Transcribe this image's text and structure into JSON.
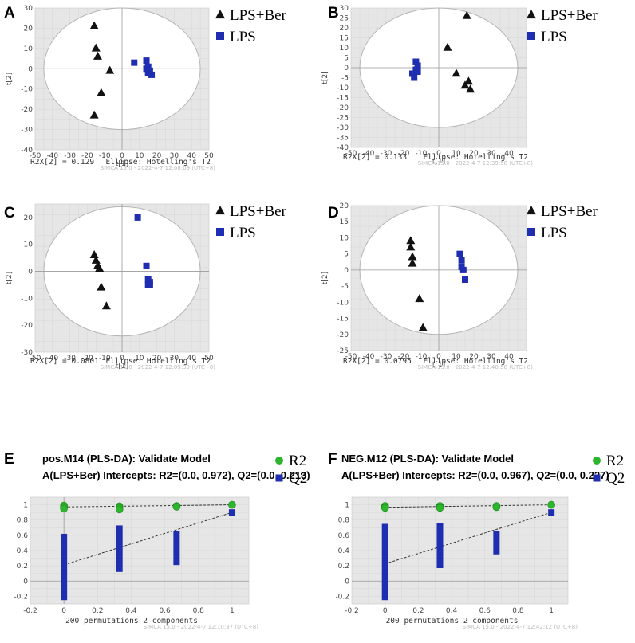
{
  "figure": {
    "colors": {
      "lps_ber": "#111111",
      "lps": "#1f2eb0",
      "r2": "#2db52d",
      "q2": "#1f2eb0",
      "plot_bg": "#e6e6e6",
      "ellipse": "#ffffff"
    },
    "legend": {
      "group1": "LPS+Ber",
      "group2": "LPS",
      "r2": "R2",
      "q2": "Q2"
    }
  },
  "chart_data": [
    {
      "panel": "A",
      "type": "scatter",
      "xlabel": "t[1]",
      "ylabel": "t[2]",
      "xlim": [
        -50,
        50
      ],
      "ylim": [
        -40,
        30
      ],
      "xticks": [
        "-50",
        "-40",
        "-30",
        "-20",
        "-10",
        "0",
        "10",
        "20",
        "30",
        "40",
        "50"
      ],
      "yticks": [
        "-40",
        "-30",
        "-20",
        "-10",
        "0",
        "10",
        "20",
        "30"
      ],
      "ellipse": {
        "rx": 45,
        "ry": 30
      },
      "series": [
        {
          "name": "LPS+Ber",
          "marker": "triangle",
          "points": [
            [
              -16,
              21
            ],
            [
              -15,
              10
            ],
            [
              -14,
              6
            ],
            [
              -7,
              -1
            ],
            [
              -12,
              -12
            ],
            [
              -16,
              -23
            ]
          ]
        },
        {
          "name": "LPS",
          "marker": "square",
          "points": [
            [
              7,
              3
            ],
            [
              14,
              4
            ],
            [
              15,
              1
            ],
            [
              16,
              -1
            ],
            [
              15,
              -2
            ],
            [
              17,
              -3
            ],
            [
              14,
              0
            ]
          ]
        }
      ],
      "footer_left": "R2X[2] = 0.129",
      "footer_right": "Ellipse: Hotelling's T2",
      "watermark": "SIMCA 15.0 - 2022-4-7 12:08:09 (UTC+8)"
    },
    {
      "panel": "B",
      "type": "scatter",
      "xlabel": "t[1]",
      "ylabel": "t[2]",
      "xlim": [
        -50,
        50
      ],
      "ylim": [
        -40,
        30
      ],
      "xticks": [
        "-50",
        "-40",
        "-30",
        "-20",
        "-10",
        "0",
        "10",
        "20",
        "30",
        "40"
      ],
      "yticks": [
        "-40",
        "-35",
        "-30",
        "-25",
        "-20",
        "-15",
        "-10",
        "-5",
        "0",
        "5",
        "10",
        "15",
        "20",
        "25",
        "30"
      ],
      "ellipse": {
        "rx": 45,
        "ry": 30
      },
      "series": [
        {
          "name": "LPS+Ber",
          "marker": "triangle",
          "points": [
            [
              16,
              26
            ],
            [
              5,
              10
            ],
            [
              10,
              -3
            ],
            [
              17,
              -7
            ],
            [
              15,
              -9
            ],
            [
              18,
              -11
            ]
          ]
        },
        {
          "name": "LPS",
          "marker": "square",
          "points": [
            [
              -13,
              3
            ],
            [
              -12,
              1
            ],
            [
              -13,
              -1
            ],
            [
              -15,
              -3
            ],
            [
              -14,
              -5
            ],
            [
              -12,
              -2
            ]
          ]
        }
      ],
      "footer_left": "R2X[2] = 0.133",
      "footer_right": "Ellipse: Hotelling's T2",
      "watermark": "SIMCA 15.0 - 2022-4-7 12:39:58 (UTC+8)"
    },
    {
      "panel": "C",
      "type": "scatter",
      "xlabel": "t[1]",
      "ylabel": "t[2]",
      "xlim": [
        -50,
        50
      ],
      "ylim": [
        -30,
        25
      ],
      "xticks": [
        "-50",
        "-40",
        "-30",
        "-20",
        "-10",
        "0",
        "10",
        "20",
        "30",
        "40",
        "50"
      ],
      "yticks": [
        "-30",
        "-20",
        "-10",
        "0",
        "10",
        "20"
      ],
      "ellipse": {
        "rx": 45,
        "ry": 24
      },
      "series": [
        {
          "name": "LPS+Ber",
          "marker": "triangle",
          "points": [
            [
              -16,
              6
            ],
            [
              -15,
              4
            ],
            [
              -14,
              2
            ],
            [
              -13,
              1
            ],
            [
              -12,
              -6
            ],
            [
              -9,
              -13
            ]
          ]
        },
        {
          "name": "LPS",
          "marker": "square",
          "points": [
            [
              9,
              20
            ],
            [
              14,
              2
            ],
            [
              15,
              -3
            ],
            [
              16,
              -4
            ],
            [
              15,
              -5
            ],
            [
              16,
              -5
            ]
          ]
        }
      ],
      "footer_left": "R2X[2] = 0.0801",
      "footer_right": "Ellipse: Hotelling's T2",
      "watermark": "SIMCA 15.0 - 2022-4-7 12:09:39 (UTC+8)"
    },
    {
      "panel": "D",
      "type": "scatter",
      "xlabel": "t[1]",
      "ylabel": "t[2]",
      "xlim": [
        -50,
        50
      ],
      "ylim": [
        -25,
        20
      ],
      "xticks": [
        "-50",
        "-40",
        "-30",
        "-20",
        "-10",
        "0",
        "10",
        "20",
        "30",
        "40"
      ],
      "yticks": [
        "-25",
        "-20",
        "-15",
        "-10",
        "-5",
        "0",
        "5",
        "10",
        "15",
        "20"
      ],
      "ellipse": {
        "rx": 45,
        "ry": 20
      },
      "series": [
        {
          "name": "LPS+Ber",
          "marker": "triangle",
          "points": [
            [
              -16,
              9
            ],
            [
              -16,
              7
            ],
            [
              -15,
              4
            ],
            [
              -15,
              2
            ],
            [
              -11,
              -9
            ],
            [
              -9,
              -18
            ]
          ]
        },
        {
          "name": "LPS",
          "marker": "square",
          "points": [
            [
              12,
              5
            ],
            [
              13,
              3
            ],
            [
              13,
              1
            ],
            [
              14,
              0
            ],
            [
              15,
              -3
            ]
          ]
        }
      ],
      "footer_left": "R2X[2] = 0.0795",
      "footer_right": "Ellipse: Hotelling's T2",
      "watermark": "SIMCA 15.0 - 2022-4-7 12:40:58 (UTC+8)"
    },
    {
      "panel": "E",
      "type": "scatter",
      "title": "pos.M14 (PLS-DA): Validate Model",
      "subtitle": "A(LPS+Ber) Intercepts: R2=(0.0, 0.972), Q2=(0.0, 0.213)",
      "xlabel": "200 permutations 2 components",
      "xlim": [
        -0.2,
        1.1
      ],
      "ylim": [
        -0.3,
        1.1
      ],
      "xticks": [
        "-0.2",
        "0",
        "0.2",
        "0.4",
        "0.6",
        "0.8",
        "1"
      ],
      "yticks": [
        "-0.2",
        "0",
        "0.2",
        "0.4",
        "0.6",
        "0.8",
        "1"
      ],
      "r2_line": [
        [
          0,
          0.972
        ],
        [
          1,
          1.0
        ]
      ],
      "q2_line": [
        [
          0,
          0.213
        ],
        [
          1,
          0.9
        ]
      ],
      "r2_points": [
        [
          0,
          0.99
        ],
        [
          0,
          0.97
        ],
        [
          0,
          0.95
        ],
        [
          0.33,
          0.98
        ],
        [
          0.33,
          0.96
        ],
        [
          0.33,
          0.94
        ],
        [
          0.67,
          0.985
        ],
        [
          0.67,
          0.975
        ],
        [
          1,
          1.0
        ]
      ],
      "q2_bars": [
        [
          0,
          -0.25,
          0.62
        ],
        [
          0.33,
          0.12,
          0.73
        ],
        [
          0.67,
          0.21,
          0.66
        ]
      ],
      "q2_points": [
        [
          1,
          0.9
        ]
      ],
      "watermark": "SIMCA 15.0 - 2022-4-7 12:10:37 (UTC+8)"
    },
    {
      "panel": "F",
      "type": "scatter",
      "title": "NEG.M12 (PLS-DA): Validate Model",
      "subtitle": "A(LPS+Ber) Intercepts: R2=(0.0, 0.967), Q2=(0.0, 0.227)",
      "xlabel": "200 permutations 2 components",
      "xlim": [
        -0.2,
        1.1
      ],
      "ylim": [
        -0.3,
        1.1
      ],
      "xticks": [
        "-0.2",
        "0",
        "0.2",
        "0.4",
        "0.6",
        "0.8",
        "1"
      ],
      "yticks": [
        "-0.2",
        "0",
        "0.2",
        "0.4",
        "0.6",
        "0.8",
        "1"
      ],
      "r2_line": [
        [
          0,
          0.967
        ],
        [
          1,
          1.0
        ]
      ],
      "q2_line": [
        [
          0,
          0.227
        ],
        [
          1,
          0.9
        ]
      ],
      "r2_points": [
        [
          0,
          0.985
        ],
        [
          0,
          0.97
        ],
        [
          0,
          0.96
        ],
        [
          0.33,
          0.985
        ],
        [
          0.33,
          0.97
        ],
        [
          0.33,
          0.96
        ],
        [
          0.67,
          0.985
        ],
        [
          0.67,
          0.97
        ],
        [
          1,
          1.0
        ]
      ],
      "q2_bars": [
        [
          0,
          -0.25,
          0.75
        ],
        [
          0.33,
          0.17,
          0.76
        ],
        [
          0.67,
          0.35,
          0.66
        ]
      ],
      "q2_points": [
        [
          1,
          0.9
        ]
      ],
      "watermark": "SIMCA 15.0 - 2022-4-7 12:42:12 (UTC+8)"
    }
  ]
}
